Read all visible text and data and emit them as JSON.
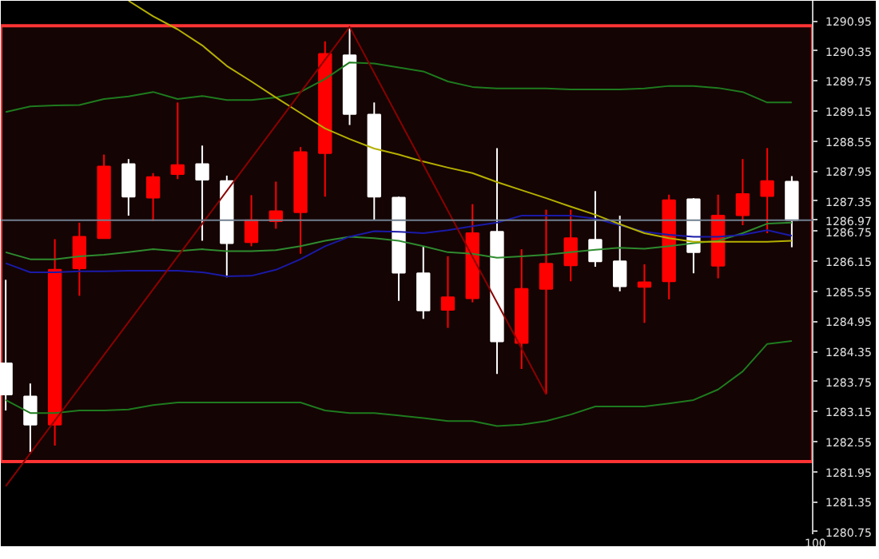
{
  "chart_data": {
    "type": "candlestick",
    "categories": [
      null,
      null,
      null,
      null,
      null,
      null,
      null,
      null,
      null,
      null,
      null,
      null,
      null,
      null,
      null,
      null,
      null,
      null,
      null,
      null,
      null,
      null,
      null,
      null,
      null,
      null,
      null,
      null,
      null,
      null,
      null,
      null,
      null
    ],
    "ohlc": [
      [
        1284.11,
        1285.78,
        1283.17,
        1283.49
      ],
      [
        1283.45,
        1283.71,
        1282.34,
        1282.89
      ],
      [
        1282.89,
        1286.59,
        1282.47,
        1285.98
      ],
      [
        1286.01,
        1286.92,
        1285.46,
        1286.64
      ],
      [
        1286.61,
        1288.28,
        1286.61,
        1288.04
      ],
      [
        1288.09,
        1288.19,
        1287.06,
        1287.44
      ],
      [
        1287.42,
        1287.91,
        1286.95,
        1287.83
      ],
      [
        1287.89,
        1289.32,
        1287.79,
        1288.07
      ],
      [
        1288.09,
        1288.46,
        1286.56,
        1287.78
      ],
      [
        1287.75,
        1287.86,
        1285.83,
        1286.51
      ],
      [
        1286.53,
        1287.47,
        1286.45,
        1286.97
      ],
      [
        1286.95,
        1287.74,
        1286.8,
        1287.15
      ],
      [
        1287.13,
        1288.43,
        1286.3,
        1288.33
      ],
      [
        1288.31,
        1290.54,
        1287.44,
        1290.29
      ],
      [
        1290.26,
        1290.83,
        1288.87,
        1289.09
      ],
      [
        1289.08,
        1289.32,
        1286.97,
        1287.44
      ],
      [
        1287.42,
        1287.44,
        1285.36,
        1285.92
      ],
      [
        1285.91,
        1286.45,
        1285.0,
        1285.17
      ],
      [
        1285.18,
        1286.25,
        1284.82,
        1285.43
      ],
      [
        1285.41,
        1287.29,
        1285.33,
        1286.71
      ],
      [
        1286.74,
        1288.41,
        1283.9,
        1284.55
      ],
      [
        1284.52,
        1286.39,
        1284.0,
        1285.6
      ],
      [
        1285.6,
        1287.18,
        1283.49,
        1286.1
      ],
      [
        1286.07,
        1287.18,
        1285.75,
        1286.61
      ],
      [
        1286.58,
        1287.55,
        1286.04,
        1286.15
      ],
      [
        1286.15,
        1287.06,
        1285.55,
        1285.65
      ],
      [
        1285.64,
        1286.09,
        1284.92,
        1285.73
      ],
      [
        1285.75,
        1287.48,
        1285.39,
        1287.37
      ],
      [
        1287.39,
        1287.41,
        1285.91,
        1286.33
      ],
      [
        1286.06,
        1287.48,
        1285.81,
        1287.06
      ],
      [
        1287.07,
        1288.19,
        1286.87,
        1287.49
      ],
      [
        1287.45,
        1288.41,
        1286.71,
        1287.75
      ],
      [
        1287.74,
        1287.85,
        1286.43,
        1286.97
      ]
    ],
    "colors": [
      "#ffffff",
      "#ffffff",
      "#ff0000",
      "#ff0000",
      "#ff0000",
      "#ffffff",
      "#ff0000",
      "#ff0000",
      "#ffffff",
      "#ffffff",
      "#ff0000",
      "#ff0000",
      "#ff0000",
      "#ff0000",
      "#ffffff",
      "#ffffff",
      "#ffffff",
      "#ffffff",
      "#ff0000",
      "#ff0000",
      "#ffffff",
      "#ff0000",
      "#ff0000",
      "#ff0000",
      "#ffffff",
      "#ffffff",
      "#ff0000",
      "#ff0000",
      "#ffffff",
      "#ff0000",
      "#ff0000",
      "#ff0000",
      "#ffffff"
    ],
    "series": [
      {
        "type": "line",
        "color": "#1e7b1e",
        "values": [
          1289.13,
          1289.24,
          1289.26,
          1289.27,
          1289.39,
          1289.44,
          1289.53,
          1289.39,
          1289.45,
          1289.37,
          1289.37,
          1289.42,
          1289.53,
          1289.79,
          1290.12,
          1290.1,
          1290.02,
          1289.94,
          1289.74,
          1289.63,
          1289.6,
          1289.6,
          1289.6,
          1289.58,
          1289.58,
          1289.58,
          1289.6,
          1289.65,
          1289.65,
          1289.61,
          1289.53,
          1289.32,
          1289.32
        ]
      },
      {
        "type": "line",
        "color": "#2e8b2e",
        "values": [
          1286.33,
          1286.19,
          1286.19,
          1286.25,
          1286.28,
          1286.33,
          1286.39,
          1286.35,
          1286.39,
          1286.35,
          1286.35,
          1286.37,
          1286.45,
          1286.56,
          1286.64,
          1286.61,
          1286.56,
          1286.45,
          1286.33,
          1286.3,
          1286.22,
          1286.25,
          1286.28,
          1286.33,
          1286.38,
          1286.42,
          1286.4,
          1286.45,
          1286.51,
          1286.56,
          1286.71,
          1286.9,
          1286.92
        ]
      },
      {
        "type": "line",
        "color": "#1e7b1e",
        "values": [
          1283.38,
          1283.12,
          1283.12,
          1283.17,
          1283.17,
          1283.19,
          1283.28,
          1283.33,
          1283.33,
          1283.33,
          1283.33,
          1283.33,
          1283.33,
          1283.17,
          1283.12,
          1283.12,
          1283.07,
          1283.02,
          1282.96,
          1282.96,
          1282.86,
          1282.89,
          1282.96,
          1283.09,
          1283.25,
          1283.25,
          1283.25,
          1283.31,
          1283.38,
          1283.59,
          1283.95,
          1284.5,
          1284.56
        ]
      },
      {
        "type": "line",
        "color": "#1a1aa8",
        "values": [
          1286.11,
          1285.93,
          1285.93,
          1285.95,
          1285.95,
          1285.96,
          1285.96,
          1285.96,
          1285.93,
          1285.85,
          1285.86,
          1285.98,
          1286.19,
          1286.45,
          1286.64,
          1286.75,
          1286.74,
          1286.71,
          1286.77,
          1286.85,
          1286.92,
          1287.06,
          1287.06,
          1287.06,
          1287.0,
          1286.87,
          1286.74,
          1286.68,
          1286.64,
          1286.64,
          1286.68,
          1286.77,
          1286.66
        ]
      },
      {
        "type": "line",
        "color": "#b5b000",
        "values": [
          null,
          null,
          null,
          null,
          null,
          1291.35,
          1291.04,
          1290.78,
          1290.46,
          1290.05,
          1289.74,
          1289.42,
          1289.11,
          1288.8,
          1288.59,
          1288.4,
          1288.28,
          1288.14,
          1288.02,
          1287.91,
          1287.73,
          1287.57,
          1287.41,
          1287.24,
          1287.08,
          1286.89,
          1286.71,
          1286.61,
          1286.54,
          1286.54,
          1286.54,
          1286.54,
          1286.56
        ]
      },
      {
        "type": "line",
        "color": "#8b0000",
        "values": [
          1281.66,
          null,
          null,
          null,
          null,
          null,
          null,
          null,
          null,
          null,
          null,
          null,
          null,
          null,
          1290.83,
          null,
          null,
          null,
          null,
          null,
          null,
          null,
          1283.49,
          null,
          null,
          null,
          null,
          null,
          null,
          null,
          null,
          null,
          null
        ]
      }
    ],
    "ylim": [
      1280.7,
      1291.35
    ],
    "yticks": [
      1290.95,
      1290.35,
      1289.75,
      1289.15,
      1288.55,
      1287.95,
      1287.35,
      1286.75,
      1286.15,
      1285.55,
      1284.95,
      1284.35,
      1283.75,
      1283.15,
      1282.55,
      1281.95,
      1281.35,
      1280.75
    ],
    "ref_lines": [
      {
        "axis": "y",
        "value": 1286.97,
        "label": "1286.97",
        "color": "#708090"
      }
    ],
    "bands": [
      {
        "axis": "y",
        "from": 1282.15,
        "to": 1290.85,
        "color": "#ff3333"
      }
    ],
    "annotations": [
      "100"
    ],
    "grid": false,
    "tick_labels": "y"
  }
}
